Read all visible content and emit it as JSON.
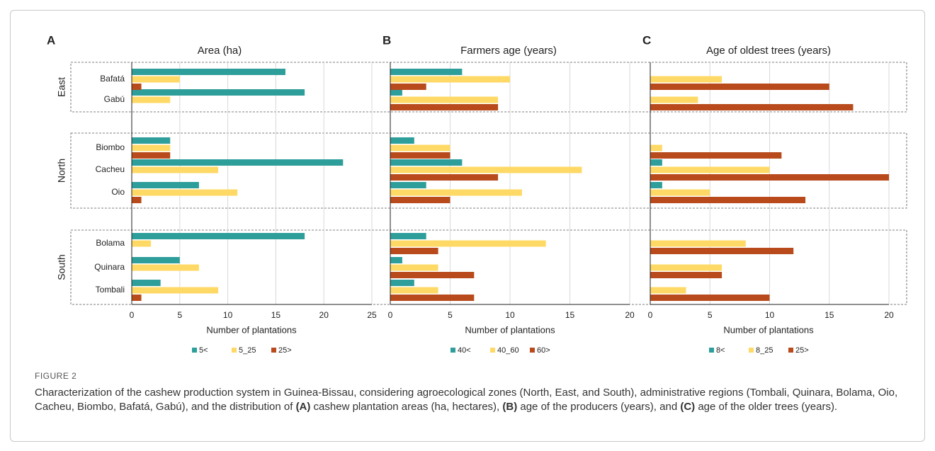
{
  "figure_label": "FIGURE 2",
  "caption": [
    {
      "text": "Characterization of the cashew production system in Guinea-Bissau, considering agroecological zones (North, East, and South), administrative regions (Tombali, Quinara, Bolama, Oio, Cacheu, Biombo, Bafatá, Gabú), and the distribution of ",
      "bold": false
    },
    {
      "text": "(A)",
      "bold": true
    },
    {
      "text": " cashew plantation areas (ha, hectares), ",
      "bold": false
    },
    {
      "text": "(B)",
      "bold": true
    },
    {
      "text": " age of the producers (years), and ",
      "bold": false
    },
    {
      "text": "(C)",
      "bold": true
    },
    {
      "text": " age of the older trees (years).",
      "bold": false
    }
  ],
  "chart_data": [
    {
      "type": "bar",
      "orientation": "horizontal",
      "panel": "A",
      "title": "Area (ha)",
      "xlabel": "Number of plantations",
      "groups": [
        {
          "name": "East",
          "categories": [
            "Bafatá",
            "Gabú"
          ]
        },
        {
          "name": "North",
          "categories": [
            "Biombo",
            "Cacheu",
            "Oio"
          ]
        },
        {
          "name": "South",
          "categories": [
            "Bolama",
            "Quinara",
            "Tombali"
          ]
        }
      ],
      "series": [
        {
          "name": "5<",
          "color": "#2e9e9b",
          "values": [
            16,
            18,
            4,
            22,
            7,
            18,
            5,
            3
          ]
        },
        {
          "name": "5_25",
          "color": "#ffd966",
          "values": [
            5,
            4,
            4,
            9,
            11,
            2,
            7,
            9
          ]
        },
        {
          "name": "25>",
          "color": "#b84a1b",
          "values": [
            1,
            0,
            4,
            0,
            1,
            0,
            0,
            1
          ]
        }
      ],
      "xlim": [
        0,
        25
      ],
      "xticks": [
        0,
        5,
        10,
        15,
        20,
        25
      ],
      "grid": true
    },
    {
      "type": "bar",
      "orientation": "horizontal",
      "panel": "B",
      "title": "Farmers age (years)",
      "xlabel": "Number of plantations",
      "series": [
        {
          "name": "40<",
          "color": "#2e9e9b",
          "values": [
            6,
            1,
            2,
            6,
            3,
            3,
            1,
            2
          ]
        },
        {
          "name": "40_60",
          "color": "#ffd966",
          "values": [
            10,
            9,
            5,
            16,
            11,
            13,
            4,
            4
          ]
        },
        {
          "name": "60>",
          "color": "#b84a1b",
          "values": [
            3,
            9,
            5,
            9,
            5,
            4,
            7,
            7
          ]
        }
      ],
      "xlim": [
        0,
        20
      ],
      "xticks": [
        0,
        5,
        10,
        15,
        20
      ],
      "grid": true
    },
    {
      "type": "bar",
      "orientation": "horizontal",
      "panel": "C",
      "title": "Age of oldest trees (years)",
      "xlabel": "Number of plantations",
      "series": [
        {
          "name": "8<",
          "color": "#2e9e9b",
          "values": [
            0,
            0,
            0,
            1,
            1,
            0,
            0,
            0
          ]
        },
        {
          "name": "8_25",
          "color": "#ffd966",
          "values": [
            6,
            4,
            1,
            10,
            5,
            8,
            6,
            3
          ]
        },
        {
          "name": "25>",
          "color": "#b84a1b",
          "values": [
            15,
            17,
            11,
            20,
            13,
            12,
            6,
            10
          ]
        }
      ],
      "xlim": [
        0,
        20
      ],
      "xticks": [
        0,
        5,
        10,
        15,
        20
      ],
      "grid": true
    }
  ]
}
